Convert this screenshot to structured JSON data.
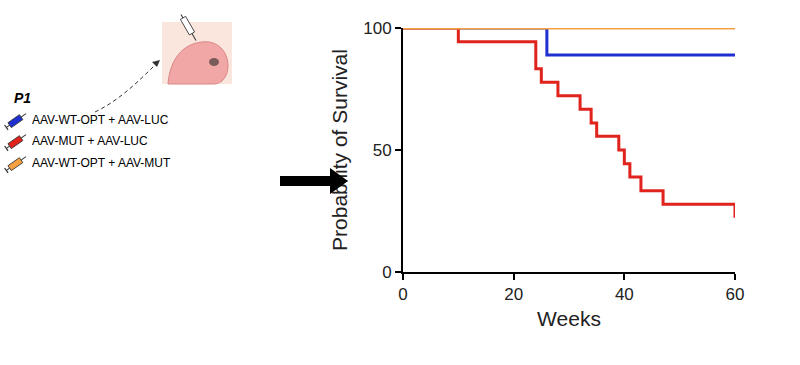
{
  "chart_data": {
    "type": "line",
    "line_style": "step",
    "x_label": "Weeks",
    "y_label": "Probability of Survival",
    "annotations": [
      "P1"
    ],
    "x": [
      0,
      10,
      24,
      25,
      26,
      28,
      32,
      34,
      35,
      39,
      40,
      41,
      43,
      47,
      60
    ],
    "series": [
      {
        "name": "AAV-WT-OPT + AAV-LUC",
        "color": "#1f2fd0",
        "values": [
          100,
          100,
          100,
          100,
          88.9,
          88.9,
          88.9,
          88.9,
          88.9,
          88.9,
          88.9,
          88.9,
          88.9,
          88.9,
          88.9
        ]
      },
      {
        "name": "AAV-MUT + AAV-LUC",
        "color": "#e0231c",
        "values": [
          100,
          94.4,
          83.3,
          77.8,
          77.8,
          72.2,
          66.7,
          61.1,
          55.6,
          50,
          44.4,
          38.9,
          33.3,
          27.8,
          22.2
        ]
      },
      {
        "name": "AAV-WT-OPT + AAV-MUT",
        "color": "#f5a142",
        "values": [
          100,
          100,
          100,
          100,
          100,
          100,
          100,
          100,
          100,
          100,
          100,
          100,
          100,
          100,
          100
        ]
      }
    ],
    "xlim": [
      0,
      60
    ],
    "xticks": [
      0,
      20,
      40,
      60
    ],
    "ylim": [
      0,
      100
    ],
    "yticks": [
      0,
      50,
      100
    ],
    "grid": false,
    "legend": "left"
  }
}
